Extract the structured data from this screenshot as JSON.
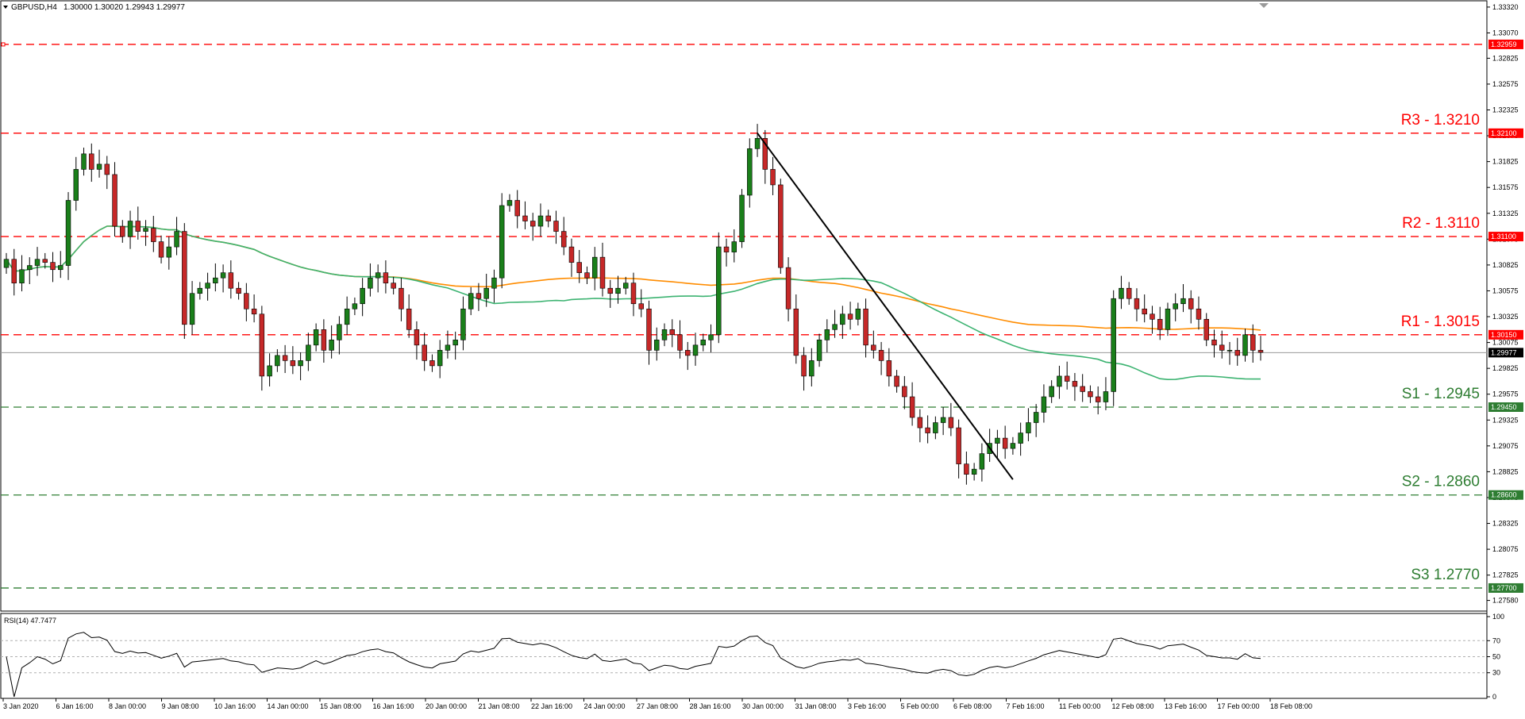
{
  "header": {
    "symbol": "GBPUSD,H4",
    "ohlc": "1.30000 1.30020 1.29943 1.29977"
  },
  "rsi_header": "RSI(14) 47.7477",
  "colors": {
    "resistance": "#ff0000",
    "support": "#2e7d32",
    "bull_candle": "#1a7f1a",
    "bear_candle": "#c62828",
    "ma_fast": "#3cb371",
    "ma_slow": "#ff8c00",
    "trendline": "#000000",
    "rsi_line": "#000000",
    "current_price_tag": "#000000"
  },
  "chart_data": [
    {
      "type": "candlestick",
      "name": "GBPUSD,H4",
      "ylim": [
        1.275,
        1.3335
      ],
      "y_ticks": [
        "1.33320",
        "1.33070",
        "1.32825",
        "1.32575",
        "1.32325",
        "1.32075",
        "1.31825",
        "1.31575",
        "1.31325",
        "1.31075",
        "1.30825",
        "1.30575",
        "1.30325",
        "1.30075",
        "1.29825",
        "1.29575",
        "1.29325",
        "1.29075",
        "1.28825",
        "1.28575",
        "1.28325",
        "1.28075",
        "1.27825",
        "1.27580"
      ],
      "x_labels": [
        "3 Jan 2020",
        "6 Jan 16:00",
        "8 Jan 00:00",
        "9 Jan 08:00",
        "10 Jan 16:00",
        "14 Jan 00:00",
        "15 Jan 08:00",
        "16 Jan 16:00",
        "20 Jan 00:00",
        "21 Jan 08:00",
        "22 Jan 16:00",
        "24 Jan 00:00",
        "27 Jan 08:00",
        "28 Jan 16:00",
        "30 Jan 00:00",
        "31 Jan 08:00",
        "3 Feb 16:00",
        "5 Feb 00:00",
        "6 Feb 08:00",
        "7 Feb 16:00",
        "11 Feb 00:00",
        "12 Feb 08:00",
        "13 Feb 16:00",
        "17 Feb 00:00",
        "18 Feb 08:00"
      ],
      "levels": [
        {
          "label": "R3 - 1.3210",
          "value": 1.321,
          "tag": "1.32100",
          "kind": "resistance"
        },
        {
          "label": "R2 - 1.3110",
          "value": 1.311,
          "tag": "1.31100",
          "kind": "resistance"
        },
        {
          "label": "R1 - 1.3015",
          "value": 1.3015,
          "tag": "1.30150",
          "kind": "resistance"
        },
        {
          "label": "S1 - 1.2945",
          "value": 1.2945,
          "tag": "1.29450",
          "kind": "support"
        },
        {
          "label": "S2 - 1.2860",
          "value": 1.286,
          "tag": "1.28600",
          "kind": "support"
        },
        {
          "label": "S3 1.2770",
          "value": 1.277,
          "tag": "1.27700",
          "kind": "support"
        }
      ],
      "extra_line": {
        "value": 1.32959,
        "tag": "1.32959"
      },
      "current_price": {
        "value": 1.29977,
        "tag": "1.29977"
      },
      "closes": [
        1.3088,
        1.3065,
        1.3078,
        1.3082,
        1.3088,
        1.3085,
        1.3078,
        1.3082,
        1.3145,
        1.3175,
        1.319,
        1.3175,
        1.318,
        1.317,
        1.312,
        1.311,
        1.3125,
        1.3115,
        1.3118,
        1.3105,
        1.309,
        1.31,
        1.3115,
        1.3025,
        1.3055,
        1.306,
        1.3065,
        1.307,
        1.3075,
        1.306,
        1.3055,
        1.304,
        1.3035,
        1.2975,
        1.2985,
        1.2995,
        1.299,
        1.2985,
        1.299,
        1.3005,
        1.302,
        1.3,
        1.301,
        1.3025,
        1.304,
        1.3045,
        1.306,
        1.307,
        1.3075,
        1.3065,
        1.306,
        1.304,
        1.302,
        1.3005,
        1.299,
        1.2985,
        1.3,
        1.3005,
        1.301,
        1.304,
        1.3055,
        1.305,
        1.306,
        1.307,
        1.314,
        1.3145,
        1.313,
        1.3125,
        1.312,
        1.313,
        1.3125,
        1.3115,
        1.31,
        1.3085,
        1.3075,
        1.307,
        1.309,
        1.306,
        1.3055,
        1.306,
        1.3065,
        1.3045,
        1.304,
        1.3,
        1.301,
        1.302,
        1.3015,
        1.3,
        1.2995,
        1.3005,
        1.301,
        1.3015,
        1.31,
        1.3095,
        1.3105,
        1.315,
        1.3195,
        1.3205,
        1.3175,
        1.316,
        1.308,
        1.304,
        1.2995,
        1.2975,
        1.299,
        1.301,
        1.302,
        1.3025,
        1.3035,
        1.303,
        1.304,
        1.3005,
        1.3,
        1.299,
        1.2975,
        1.2965,
        1.2955,
        1.2935,
        1.2925,
        1.292,
        1.293,
        1.2935,
        1.2925,
        1.289,
        1.288,
        1.2885,
        1.29,
        1.291,
        1.2915,
        1.2905,
        1.291,
        1.292,
        1.293,
        1.294,
        1.2955,
        1.2965,
        1.2975,
        1.297,
        1.2965,
        1.296,
        1.2955,
        1.295,
        1.296,
        1.305,
        1.306,
        1.305,
        1.304,
        1.3035,
        1.303,
        1.302,
        1.304,
        1.3045,
        1.305,
        1.304,
        1.303,
        1.301,
        1.3005,
        1.3,
        1.3,
        1.2995,
        1.3015,
        1.3,
        1.2998
      ]
    },
    {
      "type": "line",
      "name": "RSI(14)",
      "ylim": [
        0,
        100
      ],
      "y_ticks": [
        "100",
        "70",
        "50",
        "30",
        "0"
      ],
      "value": 47.7477
    }
  ]
}
